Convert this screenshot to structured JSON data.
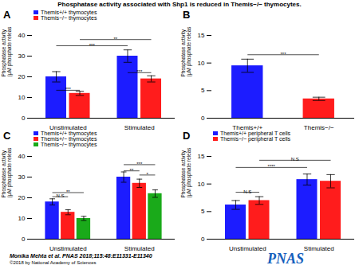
{
  "title": "Phosphatase activity associated with Shp1 is reduced in Themis−/− thymocytes.",
  "annotations": [
    {
      "text": "Monika Mehta et al. PNAS 2018;115:48:E11331-E11340"
    },
    {
      "text": "©2018 by National Academy of Sciences"
    },
    {
      "text": "PNAS",
      "color": "#1560bd"
    }
  ],
  "chart_data": [
    {
      "type": "bar",
      "title": "A",
      "ylabel": "Phosphatase activity\n(μM phosphate released)",
      "categories": [
        "Unstimulated",
        "Stimulated"
      ],
      "series": [
        {
          "name": "Themis+/+ thymocytes",
          "color": "#1c1cff",
          "values": [
            20,
            30
          ],
          "errors": [
            2.5,
            3.0
          ]
        },
        {
          "name": "Themis−/− thymocytes",
          "color": "#ff1c1c",
          "values": [
            12,
            19
          ],
          "errors": [
            1.0,
            1.5
          ]
        }
      ],
      "ylim": [
        0,
        40
      ],
      "yticks": [
        0,
        10,
        20,
        30,
        40
      ],
      "legend": "top",
      "annotations": [
        {
          "text": "***",
          "y": 13.5,
          "from": {
            "category": "Unstimulated",
            "series": "Themis+/+ thymocytes"
          },
          "to": {
            "category": "Unstimulated",
            "series": "Themis−/− thymocytes"
          }
        },
        {
          "text": "***",
          "y": 22,
          "from": {
            "category": "Stimulated",
            "series": "Themis+/+ thymocytes"
          },
          "to": {
            "category": "Stimulated",
            "series": "Themis−/− thymocytes"
          }
        },
        {
          "text": "***",
          "y": 35,
          "from": {
            "category": "Unstimulated",
            "series": "Themis+/+ thymocytes"
          },
          "to": {
            "category": "Stimulated",
            "series": "Themis+/+ thymocytes"
          }
        },
        {
          "text": "**",
          "y": 38,
          "from": {
            "category": "Unstimulated",
            "series": "Themis−/− thymocytes"
          },
          "to": {
            "category": "Stimulated",
            "series": "Themis−/− thymocytes"
          }
        }
      ]
    },
    {
      "type": "bar",
      "title": "B",
      "ylabel": "Phosphatase activity\n(μM phosphate released)",
      "categories": [
        "Themis+/+",
        "Themis−/−"
      ],
      "values": [
        9.5,
        3.5
      ],
      "errors": [
        1.2,
        0.3
      ],
      "colors": [
        "#1c1cff",
        "#ff1c1c"
      ],
      "ylim": [
        0,
        15
      ],
      "yticks": [
        0,
        5,
        10,
        15
      ],
      "annotations": [
        {
          "text": "***",
          "y": 11.5,
          "from": {
            "category": "Themis+/+"
          },
          "to": {
            "category": "Themis−/−"
          }
        }
      ]
    },
    {
      "type": "bar",
      "title": "C",
      "ylabel": "Phosphatase activity\n(μM phosphate released)",
      "categories": [
        "Unstimulated",
        "Stimulated"
      ],
      "series": [
        {
          "name": "Themis+/+ thymocytes",
          "color": "#1c1cff",
          "values": [
            18,
            30
          ],
          "errors": [
            1.5,
            2.5
          ]
        },
        {
          "name": "Themis+/− thymocytes",
          "color": "#ff1c1c",
          "values": [
            13,
            27
          ],
          "errors": [
            1.2,
            2.0
          ]
        },
        {
          "name": "Themis−/− thymocytes",
          "color": "#1aaa1a",
          "values": [
            10,
            22
          ],
          "errors": [
            1.0,
            1.8
          ]
        }
      ],
      "ylim": [
        0,
        40
      ],
      "yticks": [
        0,
        10,
        20,
        30,
        40
      ],
      "legend": "top",
      "annotations": [
        {
          "text": "N.S",
          "y": 20.5,
          "from": {
            "category": "Unstimulated",
            "series": "Themis+/+ thymocytes"
          },
          "to": {
            "category": "Unstimulated",
            "series": "Themis+/− thymocytes"
          }
        },
        {
          "text": "**",
          "y": 22.5,
          "from": {
            "category": "Unstimulated",
            "series": "Themis+/+ thymocytes"
          },
          "to": {
            "category": "Unstimulated",
            "series": "Themis−/− thymocytes"
          }
        },
        {
          "text": "**",
          "y": 33,
          "from": {
            "category": "Stimulated",
            "series": "Themis+/+ thymocytes"
          },
          "to": {
            "category": "Stimulated",
            "series": "Themis+/− thymocytes"
          }
        },
        {
          "text": "***",
          "y": 36,
          "from": {
            "category": "Stimulated",
            "series": "Themis+/+ thymocytes"
          },
          "to": {
            "category": "Stimulated",
            "series": "Themis−/− thymocytes"
          }
        },
        {
          "text": "*",
          "y": 31,
          "from": {
            "category": "Stimulated",
            "series": "Themis+/− thymocytes"
          },
          "to": {
            "category": "Stimulated",
            "series": "Themis−/− thymocytes"
          }
        }
      ]
    },
    {
      "type": "bar",
      "title": "D",
      "ylabel": "Phosphatase activity\n(μM phosphate released)",
      "categories": [
        "Unstimulated",
        "Stimulated"
      ],
      "series": [
        {
          "name": "Themis+/+ peripheral T cells",
          "color": "#1c1cff",
          "values": [
            6.2,
            10.8
          ],
          "errors": [
            0.8,
            1.0
          ]
        },
        {
          "name": "Themis−/− peripheral T cells",
          "color": "#ff1c1c",
          "values": [
            7.0,
            10.5
          ],
          "errors": [
            0.7,
            1.2
          ]
        }
      ],
      "ylim": [
        0,
        15
      ],
      "yticks": [
        0,
        5,
        10,
        15
      ],
      "legend": "top",
      "annotations": [
        {
          "text": "N.S",
          "y": 8.5,
          "from": {
            "category": "Unstimulated",
            "series": "Themis+/+ peripheral T cells"
          },
          "to": {
            "category": "Unstimulated",
            "series": "Themis−/− peripheral T cells"
          }
        },
        {
          "text": "****",
          "y": 13.0,
          "from": {
            "category": "Unstimulated",
            "series": "Themis+/+ peripheral T cells"
          },
          "to": {
            "category": "Stimulated",
            "series": "Themis+/+ peripheral T cells"
          }
        },
        {
          "text": "N.S",
          "y": 14.3,
          "from": {
            "category": "Unstimulated",
            "series": "Themis−/− peripheral T cells"
          },
          "to": {
            "category": "Stimulated",
            "series": "Themis−/− peripheral T cells"
          }
        }
      ]
    }
  ]
}
